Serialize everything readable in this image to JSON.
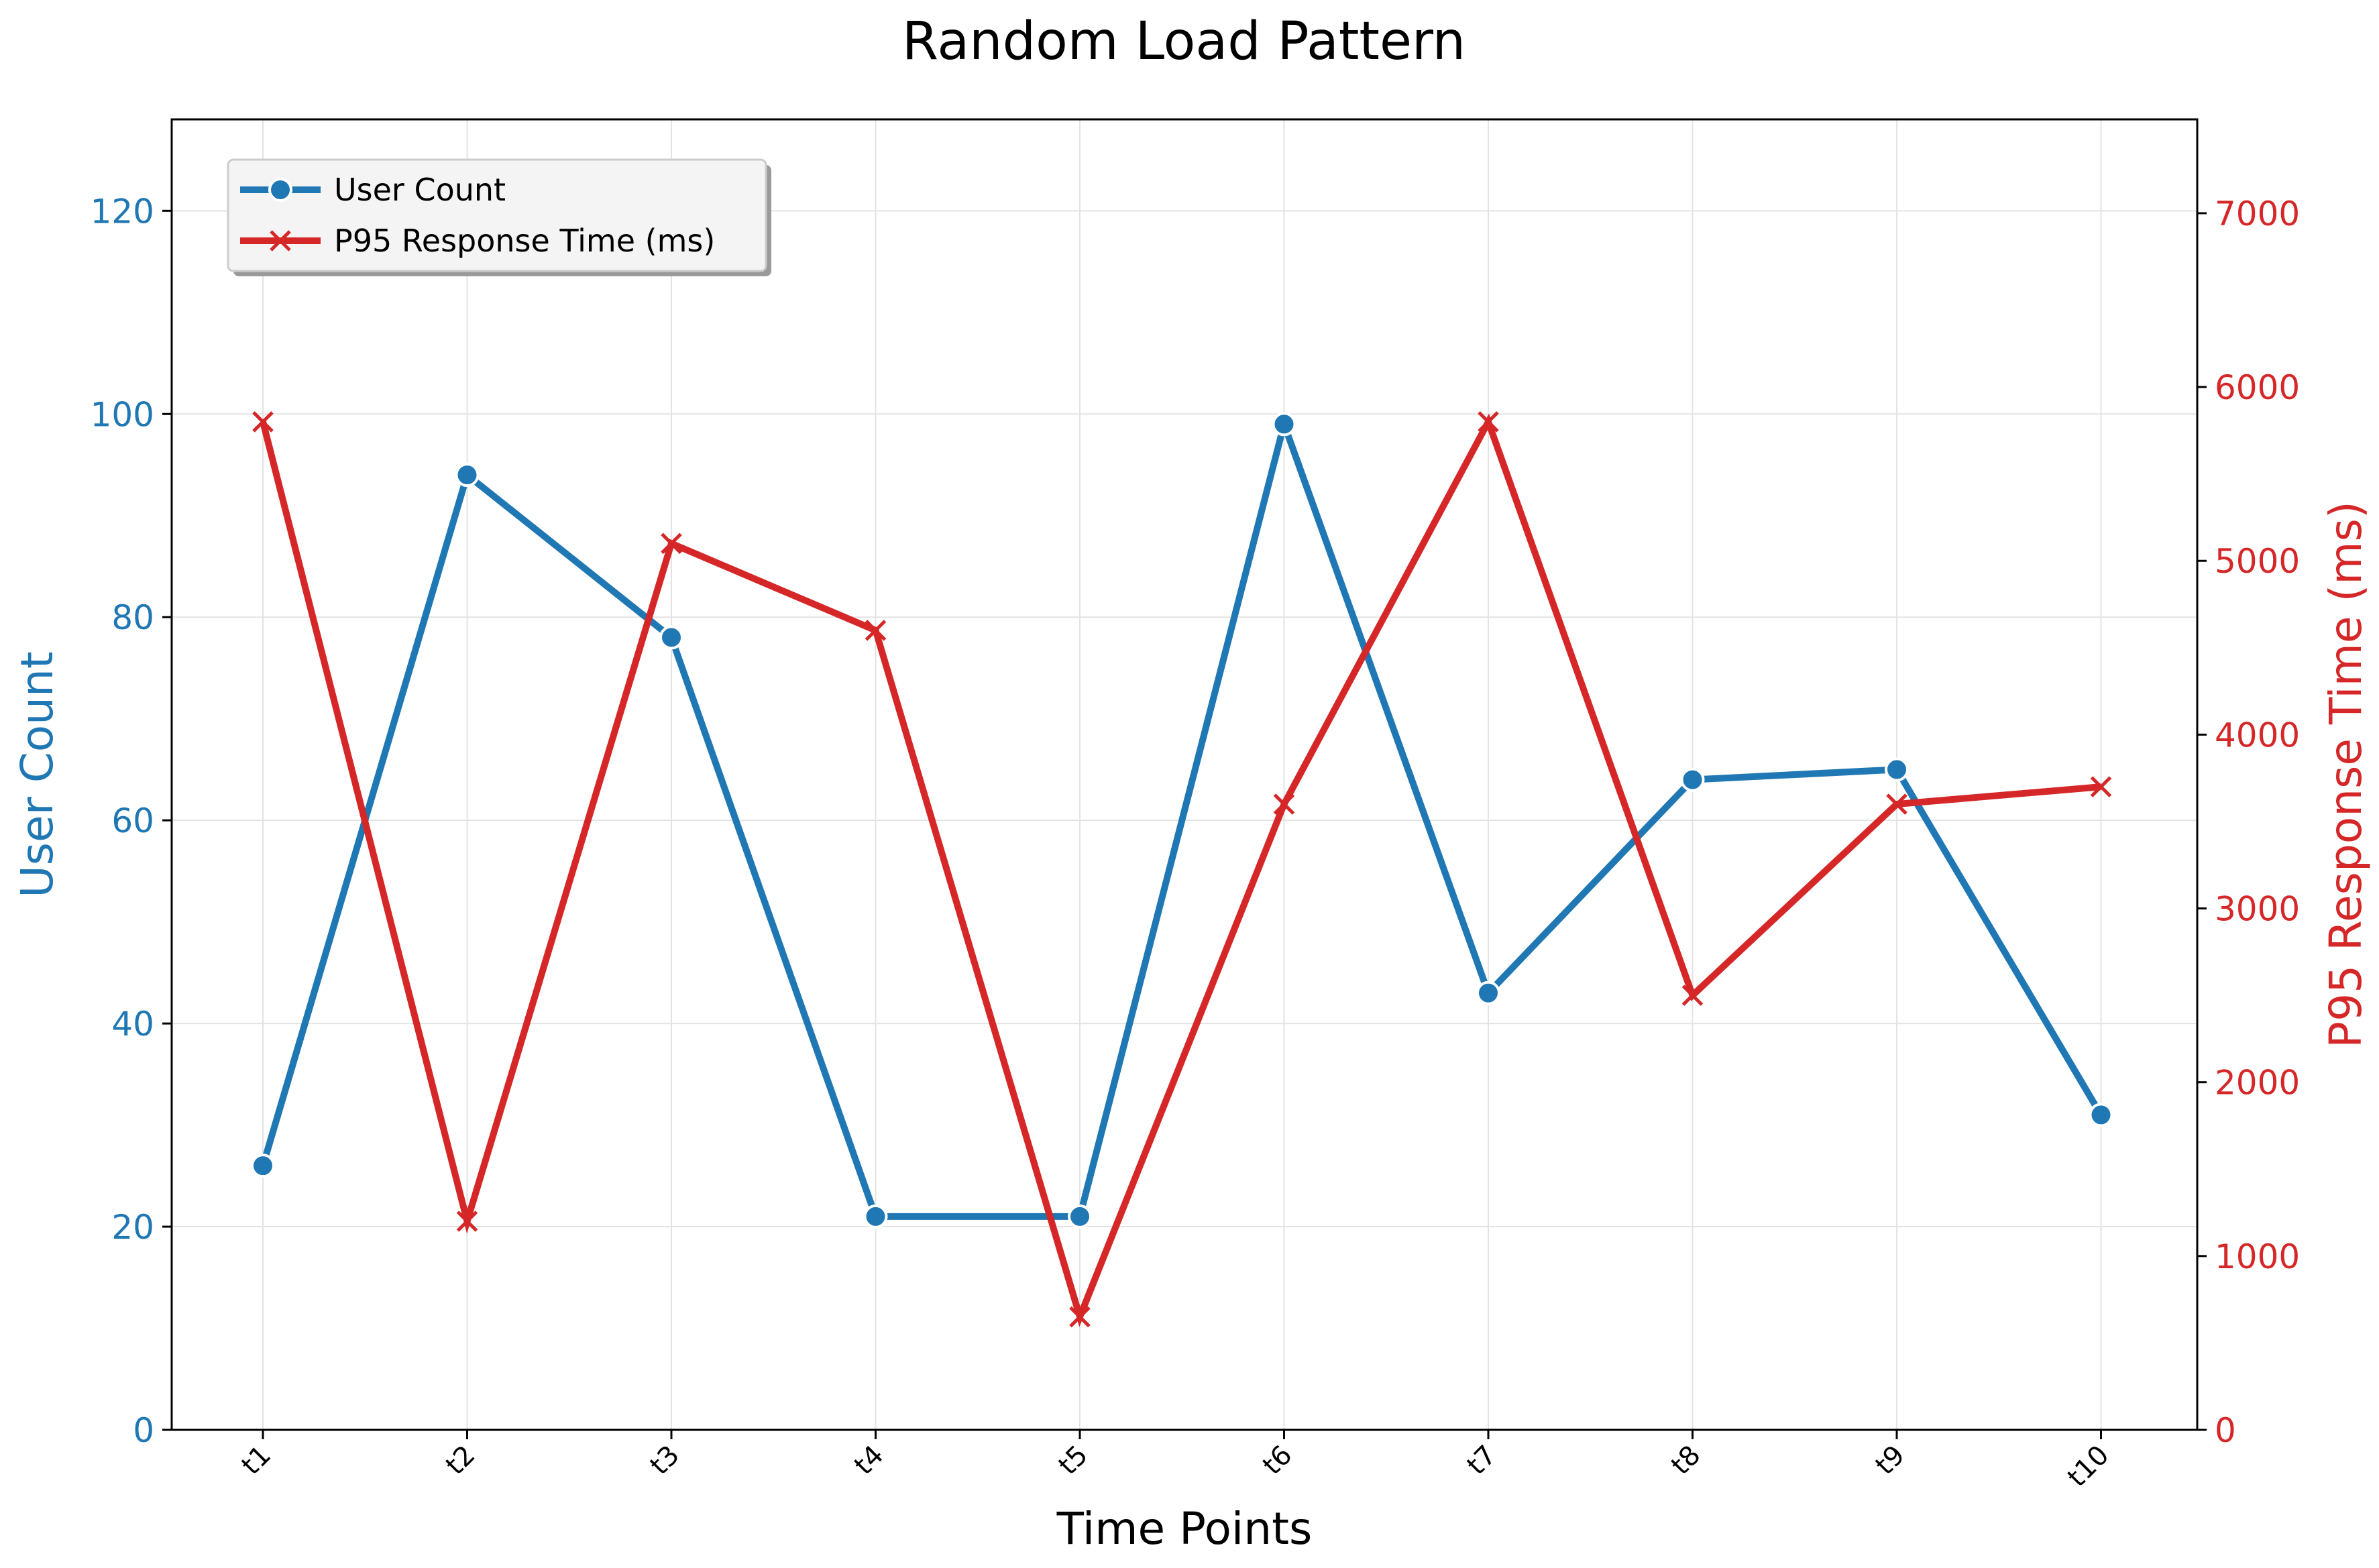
{
  "chart_data": {
    "type": "line",
    "title": "Random Load Pattern",
    "xlabel": "Time Points",
    "categories": [
      "t1",
      "t2",
      "t3",
      "t4",
      "t5",
      "t6",
      "t7",
      "t8",
      "t9",
      "t10"
    ],
    "series": [
      {
        "name": "User Count",
        "axis": "left",
        "color": "#1f77b4",
        "marker": "circle",
        "values": [
          26,
          94,
          78,
          21,
          21,
          99,
          43,
          64,
          65,
          31
        ]
      },
      {
        "name": "P95 Response Time (ms)",
        "axis": "right",
        "color": "#d62728",
        "marker": "x",
        "values": [
          5800,
          1200,
          5100,
          4600,
          650,
          3600,
          5800,
          2500,
          3600,
          3700
        ]
      }
    ],
    "y_left": {
      "label": "User Count",
      "range": [
        0,
        129
      ],
      "ticks": [
        0,
        20,
        40,
        60,
        80,
        100,
        120
      ],
      "color": "#1f77b4"
    },
    "y_right": {
      "label": "P95 Response Time (ms)",
      "range": [
        0,
        7540
      ],
      "ticks": [
        0,
        1000,
        2000,
        3000,
        4000,
        5000,
        6000,
        7000
      ],
      "color": "#d62728"
    },
    "grid": true,
    "legend": "top-left"
  }
}
